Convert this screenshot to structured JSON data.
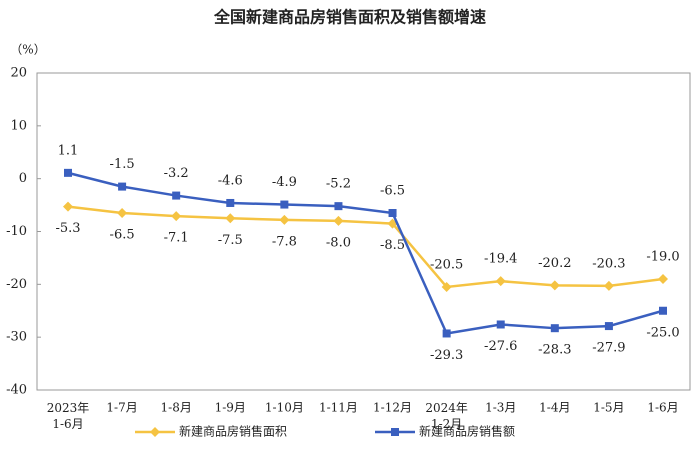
{
  "chart_data": {
    "type": "line",
    "title": "全国新建商品房销售面积及销售额增速",
    "y_label": "（%）",
    "categories": [
      "2023年\n1-6月",
      "1-7月",
      "1-8月",
      "1-9月",
      "1-10月",
      "1-11月",
      "1-12月",
      "2024年\n1-2月",
      "1-3月",
      "1-4月",
      "1-5月",
      "1-6月"
    ],
    "series": [
      {
        "name": "新建商品房销售面积",
        "color": "#f5c342",
        "marker": "diamond",
        "values": [
          -5.3,
          -6.5,
          -7.1,
          -7.5,
          -7.8,
          -8.0,
          -8.5,
          -20.5,
          -19.4,
          -20.2,
          -20.3,
          -19.0
        ],
        "value_labels": [
          "-5.3",
          "-6.5",
          "-7.1",
          "-7.5",
          "-7.8",
          "-8.0",
          "-8.5",
          "-20.5",
          "-19.4",
          "-20.2",
          "-20.3",
          "-19.0"
        ]
      },
      {
        "name": "新建商品房销售额",
        "color": "#3a5fbf",
        "marker": "square",
        "values": [
          1.1,
          -1.5,
          -3.2,
          -4.6,
          -4.9,
          -5.2,
          -6.5,
          -29.3,
          -27.6,
          -28.3,
          -27.9,
          -25.0
        ],
        "value_labels": [
          "1.1",
          "-1.5",
          "-3.2",
          "-4.6",
          "-4.9",
          "-5.2",
          "-6.5",
          "-29.3",
          "-27.6",
          "-28.3",
          "-27.9",
          "-25.0"
        ]
      }
    ],
    "ylim": [
      -40,
      20
    ],
    "yticks": [
      -40,
      -30,
      -20,
      -10,
      0,
      10,
      20
    ],
    "grid": false
  }
}
